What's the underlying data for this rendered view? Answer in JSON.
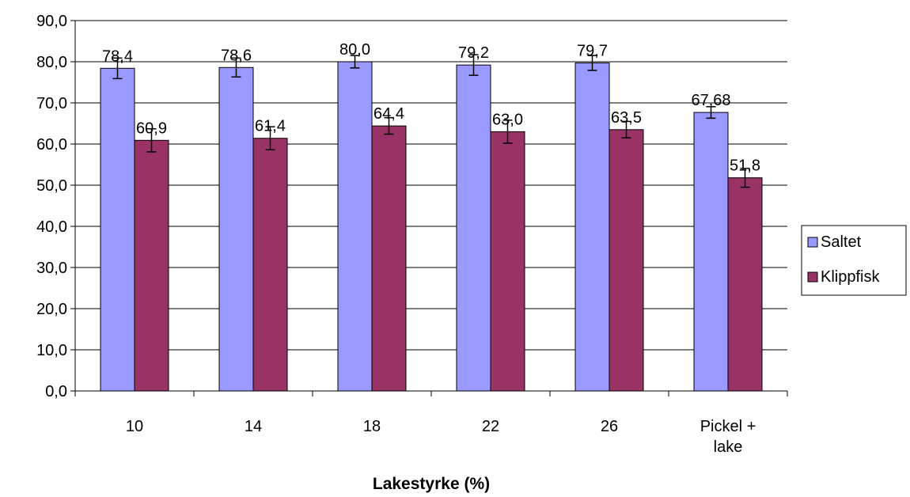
{
  "chart_data": {
    "type": "bar",
    "title": "",
    "xlabel": "Lakestyrke (%)",
    "ylabel": "",
    "ylim": [
      0,
      90
    ],
    "y_ticks": [
      "0,0",
      "10,0",
      "20,0",
      "30,0",
      "40,0",
      "50,0",
      "60,0",
      "70,0",
      "80,0",
      "90,0"
    ],
    "grid": true,
    "legend_position": "right",
    "categories": [
      [
        "10"
      ],
      [
        "14"
      ],
      [
        "18"
      ],
      [
        "22"
      ],
      [
        "26"
      ],
      [
        "Pickel +",
        "lake"
      ]
    ],
    "series": [
      {
        "name": "Saltet",
        "color": "#9999ff",
        "values": [
          78.4,
          78.6,
          80.0,
          79.2,
          79.7,
          67.68
        ],
        "labels": [
          "78,4",
          "78,6",
          "80,0",
          "79,2",
          "79,7",
          "67,68"
        ],
        "errors": [
          2.5,
          2.3,
          1.5,
          2.5,
          1.8,
          1.4
        ]
      },
      {
        "name": "Klippfisk",
        "color": "#993366",
        "values": [
          60.9,
          61.4,
          64.4,
          63.0,
          63.5,
          51.8
        ],
        "labels": [
          "60,9",
          "61,4",
          "64,4",
          "63,0",
          "63,5",
          "51,8"
        ],
        "errors": [
          2.8,
          2.8,
          2.0,
          2.8,
          2.0,
          2.3
        ]
      }
    ]
  }
}
